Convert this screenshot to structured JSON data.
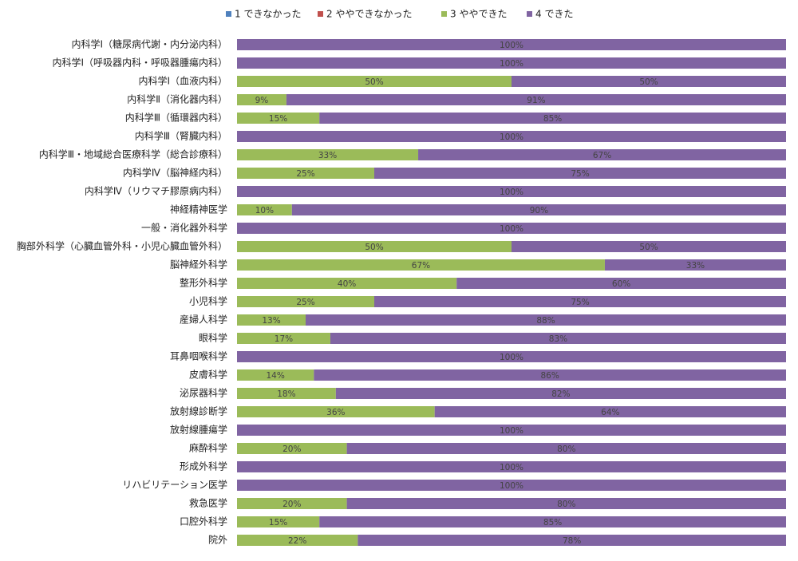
{
  "chart_data": {
    "type": "stacked-bar-horizontal",
    "categories": [
      "内科学Ⅰ（糖尿病代謝・内分泌内科）",
      "内科学Ⅰ（呼吸器内科・呼吸器腫瘍内科）",
      "内科学Ⅰ（血液内科）",
      "内科学Ⅱ（消化器内科）",
      "内科学Ⅲ（循環器内科）",
      "内科学Ⅲ（腎臓内科）",
      "内科学Ⅲ・地域総合医療科学（総合診療科）",
      "内科学Ⅳ（脳神経内科）",
      "内科学Ⅳ（リウマチ膠原病内科）",
      "神経精神医学",
      "一般・消化器外科学",
      "胸部外科学（心臓血管外科・小児心臓血管外科）",
      "脳神経外科学",
      "整形外科学",
      "小児科学",
      "産婦人科学",
      "眼科学",
      "耳鼻咽喉科学",
      "皮膚科学",
      "泌尿器科学",
      "放射線診断学",
      "放射線腫瘍学",
      "麻酔科学",
      "形成外科学",
      "リハビリテーション医学",
      "救急医学",
      "口腔外科学",
      "院外"
    ],
    "series": [
      {
        "name": "1 できなかった",
        "color": "#4f81bd",
        "values": [
          0,
          0,
          0,
          0,
          0,
          0,
          0,
          0,
          0,
          0,
          0,
          0,
          0,
          0,
          0,
          0,
          0,
          0,
          0,
          0,
          0,
          0,
          0,
          0,
          0,
          0,
          0,
          0
        ]
      },
      {
        "name": "2 ややできなかった",
        "color": "#c0504d",
        "values": [
          0,
          0,
          0,
          0,
          0,
          0,
          0,
          0,
          0,
          0,
          0,
          0,
          0,
          0,
          0,
          0,
          0,
          0,
          0,
          0,
          0,
          0,
          0,
          0,
          0,
          0,
          0,
          0
        ]
      },
      {
        "name": "3 ややできた",
        "color": "#9bbb59",
        "values": [
          0,
          0,
          50,
          9,
          15,
          0,
          33,
          25,
          0,
          10,
          0,
          50,
          67,
          40,
          25,
          12.5,
          17,
          0,
          14,
          18,
          36,
          0,
          20,
          0,
          0,
          20,
          15,
          22
        ],
        "value_labels": [
          null,
          null,
          "50%",
          "9%",
          "15%",
          null,
          "33%",
          "25%",
          null,
          "10%",
          null,
          "50%",
          "67%",
          "40%",
          "25%",
          "13%",
          "17%",
          null,
          "14%",
          "18%",
          "36%",
          null,
          "20%",
          null,
          null,
          "20%",
          "15%",
          "22%"
        ]
      },
      {
        "name": "4 できた",
        "color": "#8064a2",
        "values": [
          100,
          100,
          50,
          91,
          85,
          100,
          67,
          75,
          100,
          90,
          100,
          50,
          33,
          60,
          75,
          87.5,
          83,
          100,
          86,
          82,
          64,
          100,
          80,
          100,
          100,
          80,
          85,
          78
        ],
        "value_labels": [
          "100%",
          "100%",
          "50%",
          "91%",
          "85%",
          "100%",
          "67%",
          "75%",
          "100%",
          "90%",
          "100%",
          "50%",
          "33%",
          "60%",
          "75%",
          "88%",
          "83%",
          "100%",
          "86%",
          "82%",
          "64%",
          "100%",
          "80%",
          "100%",
          "100%",
          "80%",
          "85%",
          "78%"
        ]
      }
    ],
    "xlim": [
      0,
      100
    ],
    "legend": "top"
  }
}
